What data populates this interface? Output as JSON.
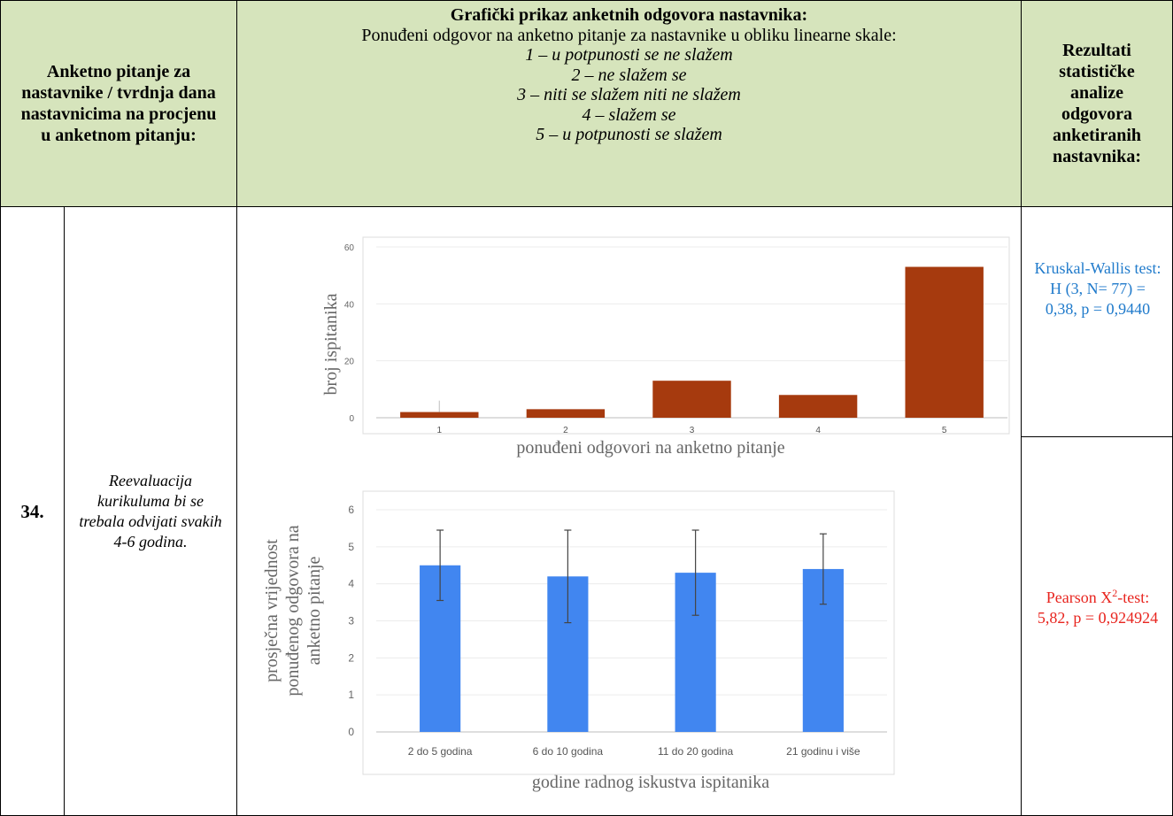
{
  "header": {
    "left": "Anketno pitanje za nastavnike / tvrdnja dana nastavnicima na procjenu u anketnom pitanju:",
    "middle_title": "Grafički prikaz anketnih odgovora nastavnika:",
    "middle_subtitle": "Ponuđeni odgovor na anketno pitanje za nastavnike u obliku linearne skale:",
    "scale": [
      "1 – u potpunosti se ne slažem",
      "2 – ne slažem se",
      "3 – niti se slažem niti ne slažem",
      "4 – slažem se",
      "5 – u potpunosti se slažem"
    ],
    "right": "Rezultati statističke analize odgovora anketiranih nastavnika:"
  },
  "row": {
    "number": "34.",
    "statement": "Reevaluacija kurikuluma bi se trebala odvijati svakih 4-6 godina.",
    "kruskal": "Kruskal-Wallis test: H (3, N= 77) = 0,38, p = 0,9440",
    "pearson_pre": "Pearson X",
    "pearson_sup": "2",
    "pearson_post": "-test: 5,82, p = 0,924924"
  },
  "colors": {
    "header_bg": "#d6e4bc",
    "bar1": "#a63a0e",
    "bar2": "#4186f0",
    "kruskal": "#1f7acb",
    "pearson": "#e8251f"
  },
  "chart_data": [
    {
      "type": "bar",
      "title": "",
      "xlabel": "ponuđeni odgovori na anketno pitanje",
      "ylabel": "broj ispitanika",
      "categories": [
        "1",
        "2",
        "3",
        "4",
        "5"
      ],
      "values": [
        2,
        3,
        13,
        8,
        53
      ],
      "error_high": [
        6,
        3,
        13,
        8,
        53
      ],
      "ylim": [
        0,
        60
      ],
      "yticks": [
        0,
        20,
        40,
        60
      ],
      "grid": true
    },
    {
      "type": "bar",
      "title": "",
      "xlabel": "godine radnog iskustva ispitanika",
      "ylabel": "prosječna vrijednost ponuđenog odgovora na anketno pitanje",
      "categories": [
        "2 do 5 godina",
        "6 do 10 godina",
        "11 do 20 godina",
        "21 godinu i više"
      ],
      "values": [
        4.5,
        4.2,
        4.3,
        4.4
      ],
      "error": [
        0.95,
        1.25,
        1.15,
        0.95
      ],
      "ylim": [
        0,
        6
      ],
      "yticks": [
        0,
        1,
        2,
        3,
        4,
        5,
        6
      ],
      "grid": true
    }
  ]
}
